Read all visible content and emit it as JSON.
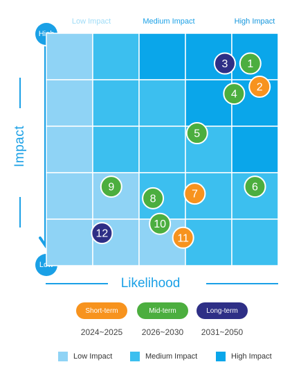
{
  "axes": {
    "y_title": "Impact",
    "x_title": "Likelihood",
    "y_high_label": "High",
    "y_low_label": "Low"
  },
  "column_headers": [
    {
      "label": "Low Impact",
      "color": "#9fdcf7"
    },
    {
      "label": "Medium Impact",
      "color": "#1aa0e6"
    },
    {
      "label": "High Impact",
      "color": "#1396dd"
    }
  ],
  "terms": [
    {
      "label": "Short-term",
      "years": "2024~2025",
      "color": "#f7931e"
    },
    {
      "label": "Mid-term",
      "years": "2026~2030",
      "color": "#4cae3f"
    },
    {
      "label": "Long-term",
      "years": "2031~2050",
      "color": "#2e2f86"
    }
  ],
  "legend": [
    {
      "label": "Low Impact",
      "color": "#8fd3f5"
    },
    {
      "label": "Medium Impact",
      "color": "#3cbfef"
    },
    {
      "label": "High Impact",
      "color": "#0aa6ea"
    }
  ],
  "chart_data": {
    "type": "scatter",
    "x_title": "Likelihood",
    "y_title": "Impact",
    "grid": true,
    "grid_size": [
      5,
      5
    ],
    "xlim": [
      0,
      5
    ],
    "ylim": [
      0,
      5
    ],
    "cell_colors": [
      [
        "#8fd3f5",
        "#3cbfef",
        "#0aa6ea",
        "#0aa6ea",
        "#0aa6ea"
      ],
      [
        "#8fd3f5",
        "#3cbfef",
        "#3cbfef",
        "#0aa6ea",
        "#0aa6ea"
      ],
      [
        "#8fd3f5",
        "#3cbfef",
        "#3cbfef",
        "#3cbfef",
        "#0aa6ea"
      ],
      [
        "#8fd3f5",
        "#8fd3f5",
        "#3cbfef",
        "#3cbfef",
        "#3cbfef"
      ],
      [
        "#8fd3f5",
        "#8fd3f5",
        "#8fd3f5",
        "#3cbfef",
        "#3cbfef"
      ]
    ],
    "points": [
      {
        "label": "1",
        "x": 4.4,
        "y": 4.35,
        "term": "Mid-term"
      },
      {
        "label": "2",
        "x": 4.6,
        "y": 3.85,
        "term": "Short-term"
      },
      {
        "label": "3",
        "x": 3.85,
        "y": 4.35,
        "term": "Long-term"
      },
      {
        "label": "4",
        "x": 4.05,
        "y": 3.7,
        "term": "Mid-term"
      },
      {
        "label": "5",
        "x": 3.25,
        "y": 2.85,
        "term": "Mid-term"
      },
      {
        "label": "6",
        "x": 4.5,
        "y": 1.7,
        "term": "Mid-term"
      },
      {
        "label": "7",
        "x": 3.2,
        "y": 1.55,
        "term": "Short-term"
      },
      {
        "label": "8",
        "x": 2.3,
        "y": 1.45,
        "term": "Mid-term"
      },
      {
        "label": "9",
        "x": 1.4,
        "y": 1.7,
        "term": "Mid-term"
      },
      {
        "label": "10",
        "x": 2.45,
        "y": 0.9,
        "term": "Mid-term"
      },
      {
        "label": "11",
        "x": 2.95,
        "y": 0.6,
        "term": "Short-term"
      },
      {
        "label": "12",
        "x": 1.2,
        "y": 0.7,
        "term": "Long-term"
      }
    ]
  }
}
